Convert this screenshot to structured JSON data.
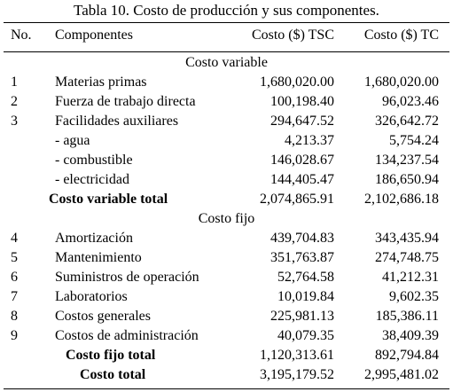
{
  "table": {
    "caption": "Tabla 10. Costo de producción y sus componentes.",
    "header": {
      "no": "No.",
      "name": "Componentes",
      "tsc": "Costo ($) TSC",
      "tc": "Costo ($) TC"
    },
    "variable": {
      "title": "Costo variable",
      "rows": [
        {
          "no": "1",
          "name": "Materias primas",
          "tsc": "1,680,020.00",
          "tc": "1,680,020.00"
        },
        {
          "no": "2",
          "name": "Fuerza de trabajo directa",
          "tsc": "100,198.40",
          "tc": "96,023.46"
        },
        {
          "no": "3",
          "name": "Facilidades auxiliares",
          "tsc": "294,647.52",
          "tc": "326,642.72"
        },
        {
          "no": "",
          "name": "- agua",
          "tsc": "4,213.37",
          "tc": "5,754.24"
        },
        {
          "no": "",
          "name": "- combustible",
          "tsc": "146,028.67",
          "tc": "134,237.54"
        },
        {
          "no": "",
          "name": "- electricidad",
          "tsc": "144,405.47",
          "tc": "186,650.94"
        }
      ],
      "total": {
        "name": "Costo variable total",
        "tsc": "2,074,865.91",
        "tc": "2,102,686.18"
      }
    },
    "fixed": {
      "title": "Costo fijo",
      "rows": [
        {
          "no": "4",
          "name": "Amortización",
          "tsc": "439,704.83",
          "tc": "343,435.94"
        },
        {
          "no": "5",
          "name": "Mantenimiento",
          "tsc": "351,763.87",
          "tc": "274,748.75"
        },
        {
          "no": "6",
          "name": "Suministros de operación",
          "tsc": "52,764.58",
          "tc": "41,212.31"
        },
        {
          "no": "7",
          "name": "Laboratorios",
          "tsc": "10,019.84",
          "tc": "9,602.35"
        },
        {
          "no": "8",
          "name": "Costos generales",
          "tsc": "225,981.13",
          "tc": "185,386.11"
        },
        {
          "no": "9",
          "name": "Costos de administración",
          "tsc": "40,079.35",
          "tc": "38,409.39"
        }
      ],
      "total": {
        "name": "Costo fijo total",
        "tsc": "1,120,313.61",
        "tc": "892,794.84"
      }
    },
    "grand_total": {
      "name": "Costo total",
      "tsc": "3,195,179.52",
      "tc": "2,995,481.02"
    }
  }
}
